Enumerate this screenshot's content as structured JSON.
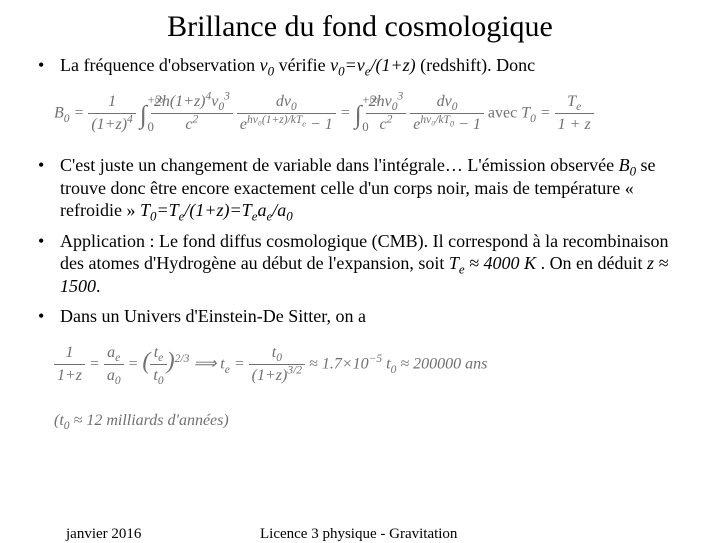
{
  "title": "Brillance du fond cosmologique",
  "bullets": {
    "b1_pre": "La fréquence d'observation ",
    "b1_v0": "ν",
    "b1_sub0": "0",
    "b1_mid": " vérifie ",
    "b1_eq": "ν",
    "b1_eq_s0": "0",
    "b1_eq_eq": "=",
    "b1_eq_ve": "ν",
    "b1_eq_se": "e",
    "b1_eq_over": "/(1+z)",
    "b1_post": "  (redshift). Donc",
    "b2": "C'est juste un changement de variable dans l'intégrale… L'émission observée ",
    "b2_B0": "B",
    "b2_B0s": "0",
    "b2_mid1": " se trouve donc être encore exactement celle d'un corps noir, mais de température « refroidie » ",
    "b2_T0eq": "T",
    "b2_T0s": "0",
    "b2_eq1": "=T",
    "b2_Tes": "e",
    "b2_eq2": "/(1+z)=T",
    "b2_Tes2": "e",
    "b2_eq3": "a",
    "b2_aes": "e",
    "b2_eq4": "/a",
    "b2_a0s": "0",
    "b3_pre": "Application : Le fond diffus cosmologique (CMB). Il correspond à la recombinaison des atomes d'Hydrogène au début de l'expansion, soit ",
    "b3_Te": "T",
    "b3_Tes": "e",
    "b3_approx": " ≈ 4000 K",
    "b3_mid": " . On en déduit ",
    "b3_z": "z ≈ 1500",
    "b3_end": ".",
    "b4": "Dans un Univers d'Einstein-De Sitter, on a"
  },
  "eq1": {
    "B0": "B",
    "B0s": "0",
    "eq": " = ",
    "f1n": "1",
    "f1d": "(1+z)",
    "f1ds": "4",
    "int1a": "0",
    "int1b": "+∞",
    "f2n_a": "2h(1+z)",
    "f2n_as": "4",
    "f2n_b": "ν",
    "f2n_bs1": "0",
    "f2n_bs2": "3",
    "f2d": "c",
    "f2ds": "2",
    "f3n": "dν",
    "f3ns": "0",
    "f3d_a": "e",
    "f3d_exp": "hν₀(1+z)/kT",
    "f3d_exps": "e",
    "f3d_b": " − 1",
    "mid": " = ",
    "int2a": "0",
    "int2b": "+∞",
    "f4n_a": "2hν",
    "f4n_as1": "0",
    "f4n_as2": "3",
    "f4d": "c",
    "f4ds": "2",
    "f5n": "dν",
    "f5ns": "0",
    "f5d_a": "e",
    "f5d_exp": "hν₀/kT",
    "f5d_exps": "0",
    "f5d_b": " − 1",
    "avec": "  avec  ",
    "T0": "T",
    "T0s": "0",
    "eq2": " = ",
    "f6n": "T",
    "f6ns": "e",
    "f6d": "1 + z"
  },
  "eq2": {
    "lhs_n": "1",
    "lhs_d": "1+z",
    "eq1": " = ",
    "f2n": "a",
    "f2ns": "e",
    "f2d": "a",
    "f2ds": "0",
    "eq2": " = ",
    "p1": "(",
    "f3n": "t",
    "f3ns": "e",
    "f3d": "t",
    "f3ds": "0",
    "p2": ")",
    "exp1": "2/3",
    "arrow": "  ⟹  ",
    "te": "t",
    "tes": "e",
    "eq3": " = ",
    "f4n": "t",
    "f4ns": "0",
    "f4d": "(1+z)",
    "f4de": "3/2",
    "approx": " ≈ 1.7×10",
    "approx_e": "−5",
    "approx2": " t",
    "approx2s": "0",
    "approx3": " ≈ 200000 ans",
    "note": "(t",
    "note_s": "0",
    "note2": " ≈ 12 milliards d'années)"
  },
  "footer": {
    "date": "janvier 2016",
    "course": "Licence 3 physique - Gravitation"
  },
  "colors": {
    "text": "#000000",
    "eq": "#707070",
    "bg": "#ffffff"
  },
  "fonts": {
    "title_size_pt": 30,
    "body_size_pt": 18,
    "eq_size_pt": 16,
    "footer_size_pt": 15
  }
}
